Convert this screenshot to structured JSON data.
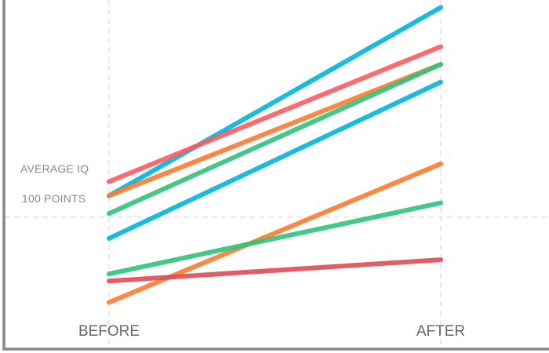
{
  "chart_data": {
    "type": "line",
    "categories": [
      "BEFORE",
      "AFTER"
    ],
    "reference_line": {
      "value": 100,
      "label_top": "AVERAGE IQ",
      "label_bottom": "100 POINTS"
    },
    "ylim": [
      75,
      160
    ],
    "grid": "vertical-dashed",
    "series": [
      {
        "color": "#00b4dc",
        "values": [
          106,
          159
        ]
      },
      {
        "color": "#ff5a5f",
        "values": [
          110,
          148
        ]
      },
      {
        "color": "#ff7a2f",
        "values": [
          106,
          143
        ]
      },
      {
        "color": "#2fc27a",
        "values": [
          101,
          143
        ]
      },
      {
        "color": "#00b4dc",
        "values": [
          94,
          138
        ]
      },
      {
        "color": "#ff7a2f",
        "values": [
          76,
          115
        ]
      },
      {
        "color": "#2fc27a",
        "values": [
          84,
          104
        ]
      },
      {
        "color": "#e04a55",
        "values": [
          82,
          88
        ]
      }
    ]
  }
}
